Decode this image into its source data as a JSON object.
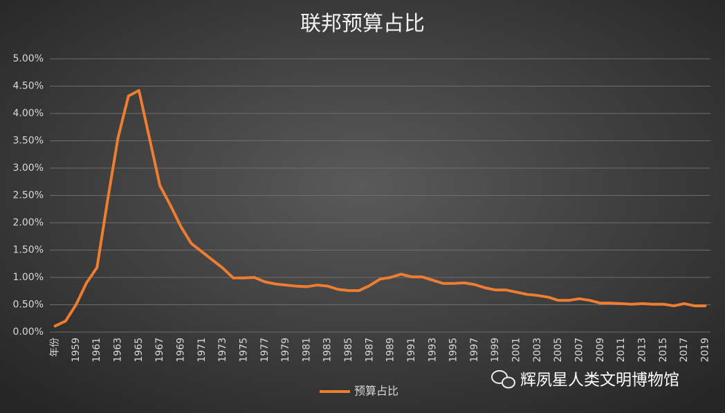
{
  "chart_data": {
    "type": "line",
    "title": "联邦预算占比",
    "categories": [
      "年份",
      null,
      "1959",
      null,
      "1961",
      null,
      "1963",
      null,
      "1965",
      null,
      "1967",
      null,
      "1969",
      null,
      "1971",
      null,
      "1973",
      null,
      "1975",
      null,
      "1977",
      null,
      "1979",
      null,
      "1981",
      null,
      "1983",
      null,
      "1985",
      null,
      "1987",
      null,
      "1989",
      null,
      "1991",
      null,
      "1993",
      null,
      "1995",
      null,
      "1997",
      null,
      "1999",
      null,
      "2001",
      null,
      "2003",
      null,
      "2005",
      null,
      "2007",
      null,
      "2009",
      null,
      "2011",
      null,
      "2013",
      null,
      "2015",
      null,
      "2017",
      null,
      "2019"
    ],
    "series": [
      {
        "name": "预算占比",
        "color": "#ed7d31",
        "values": [
          0.11,
          0.2,
          0.5,
          0.9,
          1.18,
          2.4,
          3.55,
          4.32,
          4.42,
          3.55,
          2.68,
          2.32,
          1.93,
          1.62,
          1.47,
          1.32,
          1.17,
          0.99,
          0.99,
          1.0,
          0.92,
          0.88,
          0.86,
          0.84,
          0.83,
          0.86,
          0.84,
          0.78,
          0.76,
          0.76,
          0.85,
          0.97,
          1.0,
          1.06,
          1.01,
          1.01,
          0.95,
          0.89,
          0.89,
          0.9,
          0.87,
          0.81,
          0.77,
          0.77,
          0.73,
          0.69,
          0.67,
          0.64,
          0.58,
          0.58,
          0.61,
          0.58,
          0.53,
          0.53,
          0.52,
          0.51,
          0.52,
          0.51,
          0.51,
          0.48,
          0.52,
          0.48,
          0.48
        ]
      }
    ],
    "ylim": [
      0,
      5
    ],
    "yticks": [
      {
        "value": 0,
        "label": "0.00%"
      },
      {
        "value": 0.5,
        "label": "0.50%"
      },
      {
        "value": 1,
        "label": "1.00%"
      },
      {
        "value": 1.5,
        "label": "1.50%"
      },
      {
        "value": 2,
        "label": "2.00%"
      },
      {
        "value": 2.5,
        "label": "2.50%"
      },
      {
        "value": 3,
        "label": "3.00%"
      },
      {
        "value": 3.5,
        "label": "3.50%"
      },
      {
        "value": 4,
        "label": "4.00%"
      },
      {
        "value": 4.5,
        "label": "4.50%"
      },
      {
        "value": 5,
        "label": "5.00%"
      }
    ],
    "grid": true,
    "legend": "bottom"
  },
  "watermark": "辉夙星人类文明博物馆"
}
